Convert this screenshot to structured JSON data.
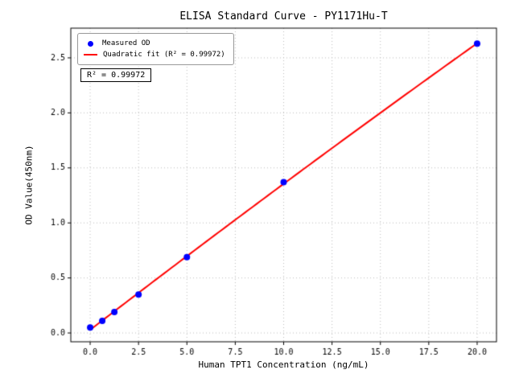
{
  "chart_data": {
    "type": "scatter",
    "title": "ELISA Standard Curve - PY1171Hu-T",
    "xlabel": "Human TPT1 Concentration (ng/mL)",
    "ylabel": "OD Value(450nm)",
    "xlim": [
      -1,
      21
    ],
    "ylim": [
      -0.08,
      2.77
    ],
    "xticks": [
      0.0,
      2.5,
      5.0,
      7.5,
      10.0,
      12.5,
      15.0,
      17.5,
      20.0
    ],
    "yticks": [
      0.0,
      0.5,
      1.0,
      1.5,
      2.0,
      2.5
    ],
    "grid": true,
    "grid_style": "dotted",
    "legend_position": "upper-left",
    "annotation": "R² = 0.99972",
    "series": [
      {
        "name": "Measured OD",
        "type": "scatter",
        "color": "#0000ff",
        "x": [
          0,
          0.625,
          1.25,
          2.5,
          5,
          10,
          20
        ],
        "y": [
          0.05,
          0.11,
          0.19,
          0.35,
          0.69,
          1.37,
          2.63
        ]
      },
      {
        "name": "Quadratic fit (R² = 0.99972)",
        "type": "quadratic-fit",
        "color": "#ff0000",
        "x_range": [
          0,
          20
        ]
      }
    ]
  }
}
